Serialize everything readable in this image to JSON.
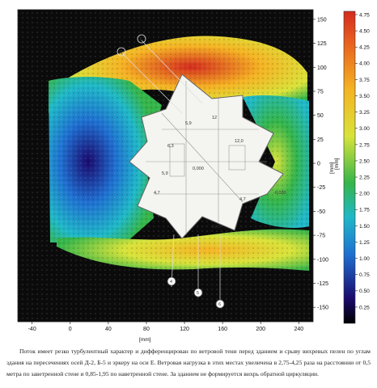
{
  "chart_data": {
    "type": "heatmap",
    "title": "",
    "xlabel": "[mm]",
    "ylabel": "[mm]",
    "colorbar_label": "[mm]",
    "xlim": [
      -55,
      255
    ],
    "ylim": [
      -165,
      160
    ],
    "x_ticks": [
      -40,
      0,
      40,
      80,
      120,
      160,
      200,
      240
    ],
    "y_ticks": [
      150,
      125,
      100,
      75,
      50,
      25,
      0,
      -25,
      -50,
      -75,
      -100,
      -125,
      -150
    ],
    "colorbar_ticks": [
      4.75,
      4.5,
      4.25,
      4.0,
      3.75,
      3.5,
      3.25,
      3.0,
      2.75,
      2.5,
      2.25,
      2.0,
      1.75,
      1.5,
      1.25,
      1.0,
      0.75,
      0.5,
      0.25
    ],
    "colorbar_range": [
      0,
      4.8
    ],
    "colors": {
      "low": "#000000",
      "c1": "#1a0a6e",
      "c2": "#1f6fd1",
      "c3": "#1fb8c8",
      "c4": "#35b54a",
      "c5": "#d8e33a",
      "c6": "#f5b323",
      "high": "#d42b1e",
      "background": "#0b0b0b"
    },
    "axis_markers": [
      "E",
      "Д",
      "Г",
      "Б",
      "А",
      "4",
      "5",
      "6"
    ],
    "room_labels": [
      "5,9",
      "6,3",
      "12",
      "12,0",
      "0,000",
      "5,9",
      "4,7",
      "4,7",
      "12,0",
      "-0,030",
      "Д",
      "Б",
      "Е"
    ]
  },
  "caption": {
    "text": "Поток имеет резко турбулентный характер и дифференцирован по ветровой тени перед зданием и срыву вихревых пелен по углам здания на пересечениях осей Д-2, Б-5 и эркеру на оси Е. Ветровая нагрузка в этих местах увеличена в 2,75-4,25 раза на расстоянии от 0,5 метра по заветренной стене и 0,85-1,95 по наветренной стене. За зданием не формируется вихрь обратной циркуляции."
  }
}
